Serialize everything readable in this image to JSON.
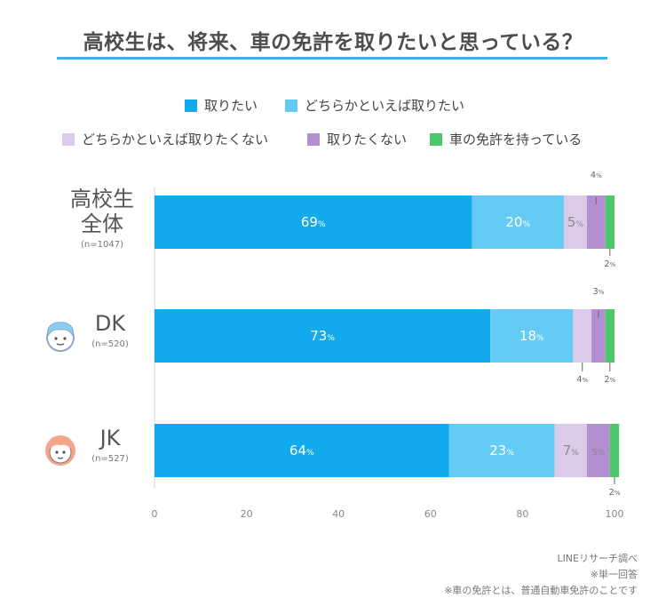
{
  "title": "高校生は、将来、車の免許を取りたいと思っている？",
  "legend": [
    {
      "label": "取りたい",
      "color": "#12aaec"
    },
    {
      "label": "どちらかといえば取りたい",
      "color": "#64cbf5"
    },
    {
      "label": "どちらかといえば取りたくない",
      "color": "#dccbe8"
    },
    {
      "label": "取りたくない",
      "color": "#b38ed0"
    },
    {
      "label": "車の免許を持っている",
      "color": "#4cc76a"
    }
  ],
  "groups": [
    {
      "line1": "高校生",
      "line2": "全体",
      "n": "(n=1047)",
      "icon": ""
    },
    {
      "line1": "DK",
      "line2": "",
      "n": "(n=520)",
      "icon": "boy-face-icon"
    },
    {
      "line1": "JK",
      "line2": "",
      "n": "(n=527)",
      "icon": "girl-face-icon"
    }
  ],
  "chart_data": {
    "type": "bar",
    "orientation": "horizontal",
    "stacked": true,
    "title": "高校生は、将来、車の免許を取りたいと思っている？",
    "categories": [
      "高校生全体",
      "DK",
      "JK"
    ],
    "series": [
      {
        "name": "取りたい",
        "values": [
          69,
          73,
          64
        ]
      },
      {
        "name": "どちらかといえば取りたい",
        "values": [
          20,
          18,
          23
        ]
      },
      {
        "name": "どちらかといえば取りたくない",
        "values": [
          5,
          4,
          7
        ]
      },
      {
        "name": "取りたくない",
        "values": [
          4,
          3,
          5
        ]
      },
      {
        "name": "車の免許を持っている",
        "values": [
          2,
          2,
          2
        ]
      }
    ],
    "value_suffix": "%",
    "xlim": [
      0,
      100
    ],
    "xticks": [
      0,
      20,
      40,
      60,
      80,
      100
    ],
    "grid": false,
    "legend_position": "top"
  },
  "notes": [
    "LINEリサーチ調べ",
    "※単一回答",
    "※車の免許とは、普通自動車免許のことです"
  ]
}
